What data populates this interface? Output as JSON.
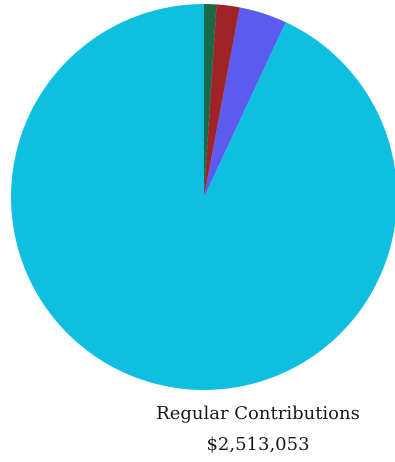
{
  "chart_data": {
    "type": "pie",
    "title": "",
    "start_angle_deg": 0,
    "direction": "counterclockwise",
    "slices": [
      {
        "label": "Regular Contributions",
        "value": 2513053,
        "display_value": "$2,513,053",
        "color": "#0fbfdf",
        "show_label": true
      },
      {
        "label": "",
        "value": 108000,
        "display_value": "",
        "color": "#5b5bf0",
        "show_label": false
      },
      {
        "label": "",
        "value": 52000,
        "display_value": "",
        "color": "#a02328",
        "show_label": false
      },
      {
        "label": "",
        "value": 28000,
        "display_value": "",
        "color": "#1a6a4a",
        "show_label": false
      }
    ]
  }
}
